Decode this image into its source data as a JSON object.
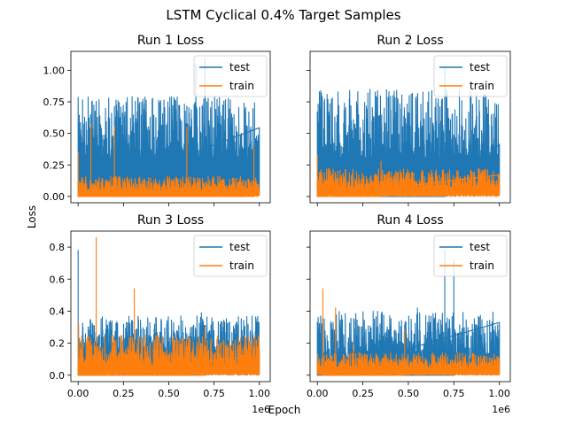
{
  "figure": {
    "title": "LSTM Cyclical 0.4% Target Samples",
    "xlabel": "Epoch",
    "ylabel": "Loss"
  },
  "colors": {
    "test": "#1f77b4",
    "train": "#ff7f0e"
  },
  "chart_data": [
    {
      "type": "line",
      "title": "Run 1 Loss",
      "x_range": [
        0,
        1000000
      ],
      "x_offset_label": "",
      "xticks": [
        0,
        250000,
        500000,
        750000,
        1000000
      ],
      "xtick_labels": [],
      "ylim": [
        -0.05,
        1.15
      ],
      "yticks": [
        0.0,
        0.25,
        0.5,
        0.75,
        1.0
      ],
      "ytick_labels": [
        "0.00",
        "0.25",
        "0.50",
        "0.75",
        "1.00"
      ],
      "legend": "top-right",
      "series": [
        {
          "name": "test",
          "color": "#1f77b4",
          "base": 0.3,
          "spread": 0.5,
          "spikes": [
            [
              0.0,
              0.67
            ],
            [
              0.3,
              0.55
            ],
            [
              0.65,
              1.05
            ],
            [
              0.7,
              1.1
            ]
          ]
        },
        {
          "name": "train",
          "color": "#ff7f0e",
          "base": 0.04,
          "spread": 0.12,
          "spikes": [
            [
              0.0,
              0.35
            ],
            [
              0.07,
              0.57
            ],
            [
              0.2,
              0.55
            ],
            [
              0.6,
              0.55
            ],
            [
              0.97,
              0.4
            ]
          ]
        }
      ]
    },
    {
      "type": "line",
      "title": "Run 2 Loss",
      "x_range": [
        0,
        1000000
      ],
      "x_offset_label": "",
      "xticks": [
        0,
        250000,
        500000,
        750000,
        1000000
      ],
      "xtick_labels": [],
      "ylim": [
        -0.05,
        1.15
      ],
      "yticks": [
        0.0,
        0.25,
        0.5,
        0.75,
        1.0
      ],
      "ytick_labels": [],
      "legend": "top-right",
      "series": [
        {
          "name": "test",
          "color": "#1f77b4",
          "base": 0.3,
          "spread": 0.55,
          "spikes": [
            [
              0.7,
              1.02
            ],
            [
              0.0,
              0.62
            ]
          ]
        },
        {
          "name": "train",
          "color": "#ff7f0e",
          "base": 0.06,
          "spread": 0.16,
          "spikes": [
            [
              0.0,
              0.33
            ],
            [
              0.35,
              0.28
            ]
          ]
        }
      ]
    },
    {
      "type": "line",
      "title": "Run 3 Loss",
      "x_range": [
        0,
        1000000
      ],
      "x_offset_label": "1e6",
      "xticks": [
        0,
        250000,
        500000,
        750000,
        1000000
      ],
      "xtick_labels": [
        "0.00",
        "0.25",
        "0.50",
        "0.75",
        "1.00"
      ],
      "ylim": [
        -0.04,
        0.9
      ],
      "yticks": [
        0.0,
        0.2,
        0.4,
        0.6,
        0.8
      ],
      "ytick_labels": [
        "0.0",
        "0.2",
        "0.4",
        "0.6",
        "0.8"
      ],
      "legend": "top-right",
      "series": [
        {
          "name": "test",
          "color": "#1f77b4",
          "base": 0.15,
          "spread": 0.22,
          "spikes": [
            [
              0.0,
              0.78
            ],
            [
              0.3,
              0.34
            ],
            [
              0.68,
              0.39
            ]
          ]
        },
        {
          "name": "train",
          "color": "#ff7f0e",
          "base": 0.05,
          "spread": 0.2,
          "spikes": [
            [
              0.0,
              0.33
            ],
            [
              0.1,
              0.86
            ],
            [
              0.31,
              0.54
            ],
            [
              0.7,
              0.3
            ]
          ]
        }
      ]
    },
    {
      "type": "line",
      "title": "Run 4 Loss",
      "x_range": [
        0,
        1000000
      ],
      "x_offset_label": "1e6",
      "xticks": [
        0,
        250000,
        500000,
        750000,
        1000000
      ],
      "xtick_labels": [
        "0.00",
        "0.25",
        "0.50",
        "0.75",
        "1.00"
      ],
      "ylim": [
        -0.04,
        0.9
      ],
      "yticks": [
        0.0,
        0.2,
        0.4,
        0.6,
        0.8
      ],
      "ytick_labels": [],
      "legend": "top-right",
      "series": [
        {
          "name": "test",
          "color": "#1f77b4",
          "base": 0.1,
          "spread": 0.3,
          "spikes": [
            [
              0.0,
              0.33
            ],
            [
              0.55,
              0.42
            ],
            [
              0.7,
              0.78
            ],
            [
              0.75,
              0.72
            ]
          ]
        },
        {
          "name": "train",
          "color": "#ff7f0e",
          "base": 0.04,
          "spread": 0.1,
          "spikes": [
            [
              0.03,
              0.54
            ],
            [
              0.1,
              0.42
            ],
            [
              0.2,
              0.19
            ],
            [
              0.48,
              0.28
            ]
          ]
        }
      ]
    }
  ]
}
